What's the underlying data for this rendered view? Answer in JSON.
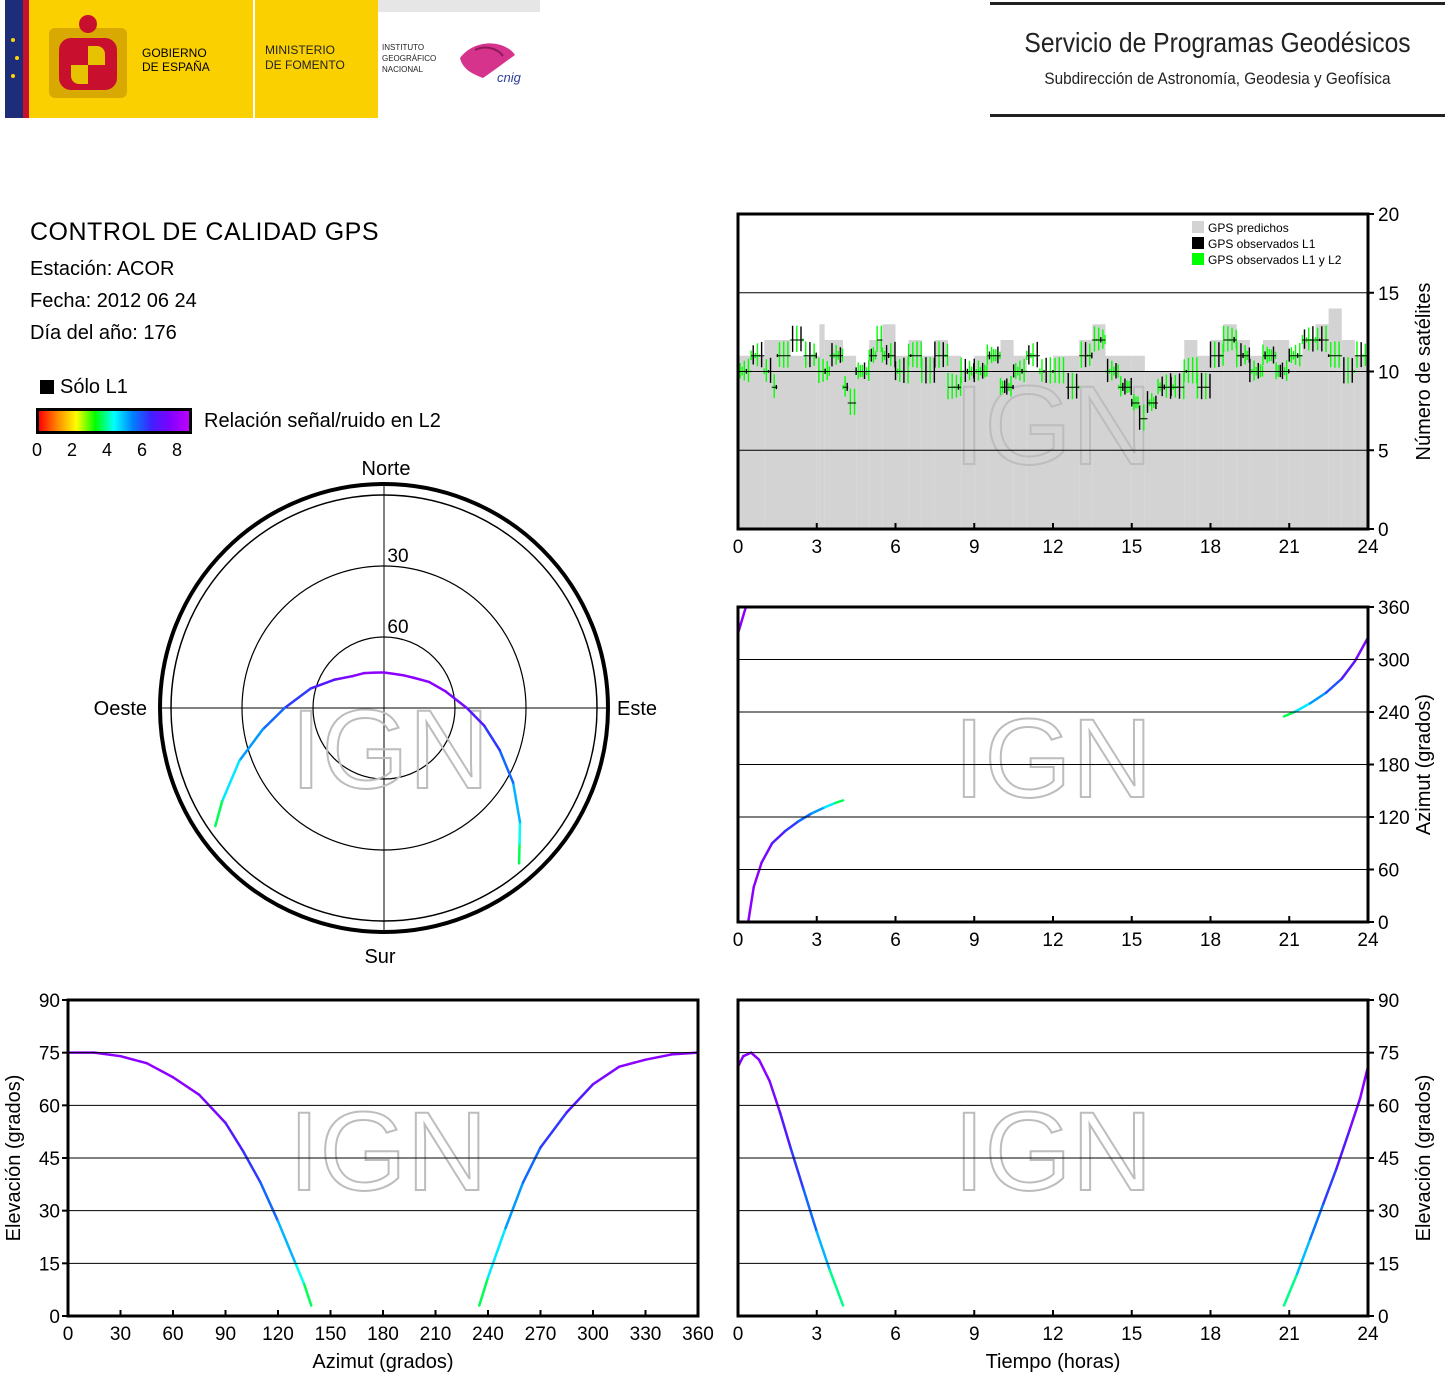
{
  "header": {
    "gobierno_line1": "GOBIERNO",
    "gobierno_line2": "DE ESPAÑA",
    "ministerio_line1": "MINISTERIO",
    "ministerio_line2": "DE FOMENTO",
    "ign_line1": "INSTITUTO",
    "ign_line2": "GEOGRÁFICO",
    "ign_line3": "NACIONAL",
    "cnig_logo_text": "cnig",
    "service_title": "Servicio de Programas Geodésicos",
    "service_subtitle": "Subdirección de Astronomía, Geodesia y Geofísica"
  },
  "info": {
    "title": "CONTROL DE CALIDAD GPS",
    "station": "Estación: ACOR",
    "date": "Fecha: 2012 06 24",
    "doy": "Día del año: 176"
  },
  "legend": {
    "l1_only": "Sólo L1",
    "snr_label": "Relación señal/ruido en L2",
    "snr_ticks": [
      "0",
      "2",
      "4",
      "6",
      "8"
    ]
  },
  "watermark": "IGN",
  "colors": {
    "predicted": "#d3d3d3",
    "observed_l1": "#000000",
    "observed_l1_l2": "#00ff00",
    "grid": "#000000",
    "watermark": "#bdbdbd"
  },
  "chart_data": [
    {
      "type": "bar",
      "name_key": "satellites",
      "ylabel": "Número de satélites",
      "xlabel": "",
      "x_ticks": [
        0,
        3,
        6,
        9,
        12,
        15,
        18,
        21,
        24
      ],
      "y_ticks": [
        0,
        5,
        10,
        15,
        20
      ],
      "xlim": [
        0,
        24
      ],
      "ylim": [
        0,
        20
      ],
      "legend": [
        "GPS predichos",
        "GPS observados L1",
        "GPS observados L1 y L2"
      ],
      "legend_position": "top-right",
      "grid": true,
      "series": [
        {
          "name": "GPS predichos",
          "x": [
            0,
            1,
            2,
            3,
            3.1,
            3.3,
            4,
            4.5,
            5,
            5.5,
            6,
            6.5,
            7,
            7.5,
            8,
            8.5,
            9,
            9.5,
            10,
            10.5,
            11,
            12,
            13,
            13.5,
            14,
            15,
            15.5,
            16,
            17,
            17.5,
            18,
            18.5,
            19,
            19.5,
            20,
            20.5,
            21,
            21.5,
            22,
            22.5,
            23,
            23.5,
            24
          ],
          "values": [
            11,
            12,
            11,
            11,
            13,
            12,
            11,
            10,
            12,
            13,
            11,
            12,
            11,
            12,
            11,
            10,
            11,
            11,
            12,
            11,
            10,
            11,
            12,
            13,
            11,
            11,
            10,
            10,
            12,
            11,
            12,
            13,
            12,
            11,
            12,
            12,
            11,
            12,
            13,
            14,
            12,
            11,
            11
          ]
        },
        {
          "name": "GPS observados L1 y L2",
          "x": [
            0,
            0.5,
            1,
            1.3,
            1.5,
            2,
            2.5,
            3,
            3.5,
            4,
            4.2,
            4.5,
            5,
            5.3,
            5.5,
            6,
            6.5,
            7,
            7.5,
            8,
            8.5,
            9,
            9.5,
            10,
            10.5,
            11,
            11.5,
            12,
            12.5,
            13,
            13.5,
            14,
            14.5,
            15,
            15.3,
            15.6,
            16,
            16.5,
            17,
            17.5,
            18,
            18.5,
            19,
            19.5,
            20,
            20.5,
            21,
            21.5,
            22,
            22.5,
            23,
            23.5,
            24
          ],
          "values": [
            10,
            11,
            10,
            9,
            11,
            12,
            11,
            10,
            11,
            9,
            8,
            10,
            11,
            12,
            11,
            10,
            11,
            10,
            11,
            9,
            10,
            10,
            11,
            9,
            10,
            11,
            10,
            10,
            9,
            11,
            12,
            10,
            9,
            8,
            7,
            8,
            9,
            9,
            10,
            9,
            11,
            12,
            11,
            10,
            11,
            10,
            11,
            12,
            12,
            11,
            10,
            11,
            11
          ]
        }
      ]
    },
    {
      "type": "line",
      "name_key": "azimuth_time",
      "ylabel": "Azimut (grados)",
      "xlabel": "",
      "x_ticks": [
        0,
        3,
        6,
        9,
        12,
        15,
        18,
        21,
        24
      ],
      "y_ticks": [
        0,
        60,
        120,
        180,
        240,
        300,
        360
      ],
      "xlim": [
        0,
        24
      ],
      "ylim": [
        0,
        360
      ],
      "grid": true,
      "series": [
        {
          "x": [
            0,
            0.1,
            0.2,
            0.3
          ],
          "y": [
            330,
            340,
            350,
            360
          ],
          "snr": [
            8,
            8,
            8,
            8
          ]
        },
        {
          "x": [
            0.4,
            0.6,
            0.9,
            1.3,
            1.8,
            2.3,
            2.8,
            3.3,
            3.7,
            4.0
          ],
          "y": [
            2,
            40,
            68,
            90,
            104,
            115,
            124,
            131,
            136,
            139
          ],
          "snr": [
            8,
            8,
            8,
            7.5,
            7,
            6.5,
            6,
            5.5,
            4.5,
            3.5
          ]
        },
        {
          "x": [
            20.8,
            21.2,
            21.8,
            22.4,
            23.0,
            23.5,
            24.0
          ],
          "y": [
            235,
            240,
            250,
            262,
            278,
            298,
            325
          ],
          "snr": [
            3.5,
            4.5,
            5.5,
            6,
            7,
            7.5,
            8
          ]
        }
      ]
    },
    {
      "type": "line",
      "name_key": "elevation_azimuth",
      "ylabel": "Elevación (grados)",
      "xlabel": "Azimut (grados)",
      "x_ticks": [
        0,
        30,
        60,
        90,
        120,
        150,
        180,
        210,
        240,
        270,
        300,
        330,
        360
      ],
      "y_ticks": [
        0,
        15,
        30,
        45,
        60,
        75,
        90
      ],
      "xlim": [
        0,
        360
      ],
      "ylim": [
        0,
        90
      ],
      "grid": true,
      "series": [
        {
          "x": [
            0,
            15,
            30,
            45,
            60,
            75,
            90,
            100,
            110,
            120,
            130,
            135,
            139
          ],
          "y": [
            75,
            75,
            74,
            72,
            68,
            63,
            55,
            47,
            38,
            27,
            15,
            9,
            3
          ],
          "snr": [
            8,
            8,
            8,
            8,
            8,
            8,
            7.5,
            7,
            6.5,
            6,
            5,
            4.5,
            3.5
          ]
        },
        {
          "x": [
            235,
            240,
            250,
            260,
            270,
            285,
            300,
            315,
            330,
            345,
            360
          ],
          "y": [
            3,
            11,
            25,
            38,
            48,
            58,
            66,
            71,
            73,
            74.5,
            75
          ],
          "snr": [
            3.5,
            4.5,
            5.5,
            6,
            6.5,
            7,
            7.5,
            8,
            8,
            8,
            8
          ]
        }
      ]
    },
    {
      "type": "line",
      "name_key": "elevation_time",
      "ylabel": "Elevación (grados)",
      "xlabel": "Tiempo (horas)",
      "x_ticks": [
        0,
        3,
        6,
        9,
        12,
        15,
        18,
        21,
        24
      ],
      "y_ticks": [
        0,
        15,
        30,
        45,
        60,
        75,
        90
      ],
      "xlim": [
        0,
        24
      ],
      "ylim": [
        0,
        90
      ],
      "grid": true,
      "series": [
        {
          "x": [
            0,
            0.2,
            0.5,
            0.8,
            1.2,
            1.6,
            2.0,
            2.5,
            3.0,
            3.5,
            4.0
          ],
          "y": [
            71,
            74,
            75,
            73,
            67,
            58,
            48,
            36,
            24,
            13,
            3
          ],
          "snr": [
            8,
            8,
            8,
            8,
            8,
            7.5,
            7,
            6.5,
            6,
            5,
            3.5
          ]
        },
        {
          "x": [
            20.8,
            21.3,
            21.8,
            22.3,
            22.8,
            23.3,
            23.7,
            24.0
          ],
          "y": [
            3,
            12,
            22,
            32,
            42,
            53,
            62,
            71
          ],
          "snr": [
            3.5,
            5,
            5.8,
            6.4,
            7,
            7.5,
            8,
            8
          ]
        }
      ]
    },
    {
      "type": "scatter",
      "name_key": "skyplot",
      "labels": {
        "north": "Norte",
        "south": "Sur",
        "east": "Este",
        "west": "Oeste"
      },
      "ring_labels": [
        "30",
        "60"
      ],
      "ring_elevations": [
        0,
        30,
        60
      ],
      "series": [
        {
          "azimuth": [
            139,
            135,
            130,
            120,
            110,
            100,
            90,
            75,
            60,
            45,
            30,
            15,
            0,
            345,
            330,
            315,
            300,
            285,
            270,
            260,
            250,
            240,
            235
          ],
          "elevation": [
            3,
            9,
            15,
            27,
            38,
            47,
            55,
            63,
            68,
            72,
            74,
            75,
            75,
            74.5,
            73,
            71,
            66,
            58,
            48,
            38,
            25,
            11,
            3
          ],
          "snr": [
            3.5,
            4.5,
            5,
            6,
            6.5,
            7,
            7.5,
            8,
            8,
            8,
            8,
            8,
            8,
            8,
            8,
            8,
            7.5,
            7,
            6.5,
            6,
            5.5,
            4.5,
            3.5
          ]
        }
      ]
    }
  ]
}
